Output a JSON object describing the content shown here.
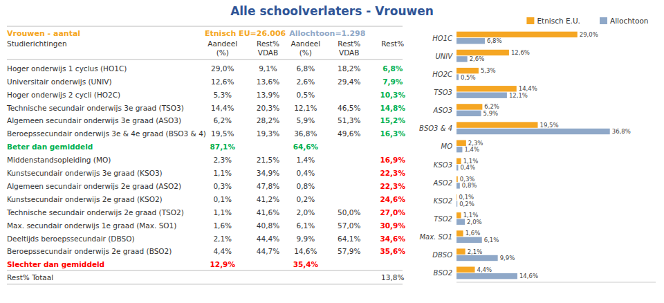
{
  "chart_data": [
    {
      "type": "table",
      "title": "Alle schoolverlaters - Vrouwen",
      "title_color": "#2F5597",
      "color": "#333333",
      "header": [
        {
          "text": "Vrouwen - aantal",
          "color": "#F5A623"
        },
        {
          "text": "Etnisch EU=26.006",
          "color": "#F5A623"
        },
        {
          "text": "Allochtoon=1.298",
          "color": "#8FA8C8"
        }
      ],
      "columns": [
        "Studierichtingen",
        "Aandeel",
        "Rest%",
        "Aandeel",
        "Rest%",
        "Rest%"
      ],
      "subcolumns": [
        null,
        "(%)",
        "VDAB",
        "(%)",
        "VDAB",
        null
      ],
      "rows": [
        {
          "cells": [
            "Hoger onderwijs 1 cyclus (HO1C)",
            "29,0%",
            "9,1%",
            "6,8%",
            "18,2%",
            "6,8%"
          ],
          "colors": [
            "#333333",
            "#333333",
            "#333333",
            "#333333",
            "#333333",
            "#00B050"
          ]
        },
        {
          "cells": [
            "Universitair onderwijs (UNIV)",
            "12,6%",
            "13,6%",
            "2,6%",
            "29,4%",
            "7,9%"
          ],
          "colors": [
            "#333333",
            "#333333",
            "#333333",
            "#333333",
            "#333333",
            "#00B050"
          ]
        },
        {
          "cells": [
            "Hoger onderwijs 2 cycli (HO2C)",
            "5,3%",
            "13,9%",
            "0,5%",
            null,
            "10,3%"
          ],
          "colors": [
            "#333333",
            "#333333",
            "#333333",
            "#333333",
            null,
            "#00B050"
          ]
        },
        {
          "cells": [
            "Technische secundair onderwijs 3e graad (TSO3)",
            "14,4%",
            "20,3%",
            "12,1%",
            "46,5%",
            "14,8%"
          ],
          "colors": [
            "#333333",
            "#333333",
            "#333333",
            "#333333",
            "#333333",
            "#00B050"
          ]
        },
        {
          "cells": [
            "Algemeen secundair onderwijs 3e graad (ASO3)",
            "6,2%",
            "28,2%",
            "5,9%",
            "51,3%",
            "15,2%"
          ],
          "colors": [
            "#333333",
            "#333333",
            "#333333",
            "#333333",
            "#333333",
            "#00B050"
          ]
        },
        {
          "cells": [
            "Beroepssecundair onderwijs 3e & 4e graad (BSO3 & 4)",
            "19,5%",
            "19,3%",
            "36,8%",
            "49,6%",
            "16,3%"
          ],
          "colors": [
            "#333333",
            "#333333",
            "#333333",
            "#333333",
            "#333333",
            "#00B050"
          ]
        },
        {
          "cells": [
            "Beter dan gemiddeld",
            "87,1%",
            null,
            "64,6%",
            null,
            null
          ],
          "colors": [
            "#00B050",
            "#00B050",
            null,
            "#00B050",
            null,
            null
          ]
        },
        {
          "cells": [
            "Middenstandsopleiding (MO)",
            "2,3%",
            "21,5%",
            "1,4%",
            null,
            "16,9%"
          ],
          "colors": [
            "#333333",
            "#333333",
            "#333333",
            "#333333",
            null,
            "#FF0000"
          ]
        },
        {
          "cells": [
            "Kunstsecundair onderwijs 3e graad (KSO3)",
            "1,1%",
            "34,9%",
            "0,4%",
            null,
            "22,3%"
          ],
          "colors": [
            "#333333",
            "#333333",
            "#333333",
            "#333333",
            null,
            "#FF0000"
          ]
        },
        {
          "cells": [
            "Algemeen secundair onderwijs 2e graad (ASO2)",
            "0,3%",
            "47,8%",
            "0,8%",
            null,
            "22,3%"
          ],
          "colors": [
            "#333333",
            "#333333",
            "#333333",
            "#333333",
            null,
            "#FF0000"
          ]
        },
        {
          "cells": [
            "Kunstsecundair onderwijs 2e graad (KSO2)",
            "0,1%",
            "41,2%",
            "0,2%",
            null,
            "24,6%"
          ],
          "colors": [
            "#333333",
            "#333333",
            "#333333",
            "#333333",
            null,
            "#FF0000"
          ]
        },
        {
          "cells": [
            "Technische secundair onderwijs 2e graad (TSO2)",
            "1,1%",
            "41,6%",
            "2,0%",
            "50,0%",
            "27,0%"
          ],
          "colors": [
            "#333333",
            "#333333",
            "#333333",
            "#333333",
            "#333333",
            "#FF0000"
          ]
        },
        {
          "cells": [
            "Max. secundair onderwijs 1e graad (Max. SO1)",
            "1,6%",
            "40,8%",
            "6,1%",
            "57,0%",
            "30,9%"
          ],
          "colors": [
            "#333333",
            "#333333",
            "#333333",
            "#333333",
            "#333333",
            "#FF0000"
          ]
        },
        {
          "cells": [
            "Deeltijds beroepssecundair (DBSO)",
            "2,1%",
            "44,4%",
            "9,9%",
            "64,1%",
            "34,6%"
          ],
          "colors": [
            "#333333",
            "#333333",
            "#333333",
            "#333333",
            "#333333",
            "#FF0000"
          ]
        },
        {
          "cells": [
            "Beroepssecundair onderwijs 2e graad (BSO2)",
            "4,4%",
            "44,7%",
            "14,6%",
            "57,9%",
            "35,6%"
          ],
          "colors": [
            "#333333",
            "#333333",
            "#333333",
            "#333333",
            "#333333",
            "#FF0000"
          ]
        },
        {
          "cells": [
            "Slechter dan gemiddeld",
            "12,9%",
            null,
            "35,4%",
            null,
            null
          ],
          "colors": [
            "#FF0000",
            "#FF0000",
            null,
            "#FF0000",
            null,
            null
          ]
        },
        {
          "cells": [
            "Rest% Totaal",
            null,
            null,
            null,
            null,
            "13,8%"
          ],
          "colors": [
            "#333333",
            null,
            null,
            null,
            null,
            "#333333"
          ]
        }
      ]
    },
    {
      "type": "bar",
      "orientation": "horizontal",
      "categories": [
        "HO1C",
        "UNIV",
        "HO2C",
        "TSO3",
        "ASO3",
        "BSO3 & 4",
        "MO",
        "KSO3",
        "ASO2",
        "KSO2",
        "TSO2",
        "Max. SO1",
        "DBSO",
        "BSO2"
      ],
      "series": [
        {
          "name": "Etnisch E.U.",
          "color": "#F5A623",
          "values": [
            29.0,
            12.6,
            5.3,
            14.4,
            6.2,
            19.5,
            2.3,
            1.1,
            0.3,
            0.1,
            1.1,
            1.6,
            2.1,
            4.4
          ],
          "value_labels": [
            "29,0%",
            "12,6%",
            "5,3%",
            "14,4%",
            "6,2%",
            "19,5%",
            "2,3%",
            "1,1%",
            "0,3%",
            "0,1%",
            "1,1%",
            "1,6%",
            "2,1%",
            "4,4%"
          ]
        },
        {
          "name": "Allochtoon",
          "color": "#8FA8C8",
          "values": [
            6.8,
            2.6,
            0.5,
            12.1,
            5.9,
            36.8,
            1.4,
            0.4,
            0.8,
            0.2,
            2.0,
            6.1,
            9.9,
            14.6
          ],
          "value_labels": [
            "6,8%",
            "2,6%",
            "0,5%",
            "12,1%",
            "5,9%",
            "36,8%",
            "1,4%",
            "0,4%",
            "0,8%",
            "0,2%",
            "2,0%",
            "6,1%",
            "9,9%",
            "14,6%"
          ]
        }
      ],
      "xlim": [
        0,
        47.8
      ],
      "data_labels": true,
      "tick_labels": "y",
      "grid": false,
      "legend": "lower right"
    }
  ]
}
